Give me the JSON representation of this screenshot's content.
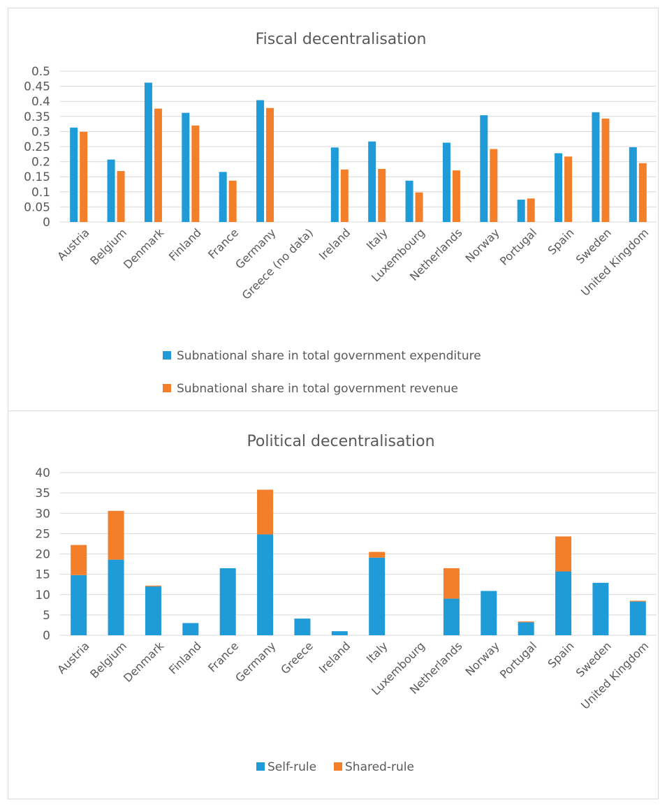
{
  "colors": {
    "blue": "#1f9bd7",
    "orange": "#f47f2a"
  },
  "chart_data": [
    {
      "type": "bar",
      "title": "Fiscal decentralisation",
      "categories": [
        "Austria",
        "Belgium",
        "Denmark",
        "Finland",
        "France",
        "Germany",
        "Greece (no data)",
        "Ireland",
        "Italy",
        "Luxembourg",
        "Netherlands",
        "Norway",
        "Portugal",
        "Spain",
        "Sweden",
        "United Kingdom"
      ],
      "series": [
        {
          "name": "Subnational share in total government expenditure",
          "color": "#1f9bd7",
          "values": [
            0.313,
            0.207,
            0.462,
            0.362,
            0.166,
            0.404,
            null,
            0.247,
            0.267,
            0.137,
            0.263,
            0.354,
            0.074,
            0.228,
            0.364,
            0.248
          ]
        },
        {
          "name": "Subnational share in total government revenue",
          "color": "#f47f2a",
          "values": [
            0.299,
            0.169,
            0.376,
            0.32,
            0.137,
            0.378,
            null,
            0.174,
            0.176,
            0.098,
            0.171,
            0.242,
            0.078,
            0.217,
            0.343,
            0.195
          ]
        }
      ],
      "yticks": [
        "0",
        "0.05",
        "0.1",
        "0.15",
        "0.2",
        "0.25",
        "0.3",
        "0.35",
        "0.4",
        "0.45",
        "0.5"
      ],
      "ylim": [
        0,
        0.5
      ],
      "grid": true,
      "legend_position": "bottom"
    },
    {
      "type": "bar",
      "stacked": true,
      "title": "Political decentralisation",
      "categories": [
        "Austria",
        "Belgium",
        "Denmark",
        "Finland",
        "France",
        "Germany",
        "Greece",
        "Ireland",
        "Italy",
        "Luxembourg",
        "Netherlands",
        "Norway",
        "Portugal",
        "Spain",
        "Sweden",
        "United Kingdom"
      ],
      "series": [
        {
          "name": "Self-rule",
          "color": "#1f9bd7",
          "values": [
            14.8,
            18.6,
            12.0,
            3.0,
            16.5,
            24.8,
            4.1,
            1.0,
            19.1,
            0,
            9.0,
            10.9,
            3.2,
            15.7,
            12.9,
            8.3
          ]
        },
        {
          "name": "Shared-rule",
          "color": "#f47f2a",
          "values": [
            7.4,
            12.0,
            0.2,
            0,
            0,
            11.0,
            0,
            0,
            1.4,
            0,
            7.5,
            0,
            0.2,
            8.6,
            0,
            0.2
          ]
        }
      ],
      "yticks": [
        "0",
        "5",
        "10",
        "15",
        "20",
        "25",
        "30",
        "35",
        "40"
      ],
      "ylim": [
        0,
        40
      ],
      "grid": true,
      "legend_position": "bottom"
    }
  ]
}
